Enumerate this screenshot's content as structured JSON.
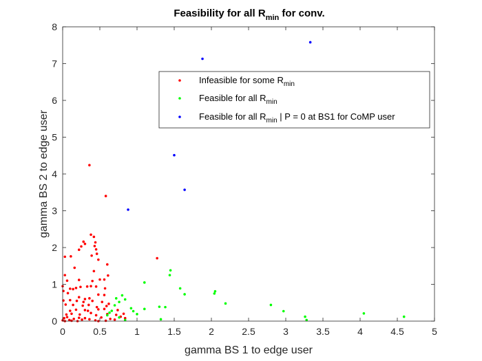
{
  "chart_data": {
    "type": "scatter",
    "title": "Feasibility for all R",
    "title_subscript": "min",
    "title_suffix": " for conv.",
    "xlabel": "gamma BS 1 to edge user",
    "ylabel": "gamma BS 2 to edge user",
    "xlim": [
      0,
      5
    ],
    "ylim": [
      0,
      8
    ],
    "xticks": [
      0,
      0.5,
      1,
      1.5,
      2,
      2.5,
      3,
      3.5,
      4,
      4.5,
      5
    ],
    "xtick_labels": [
      "0",
      "0.5",
      "1",
      "1.5",
      "2",
      "2.5",
      "3",
      "3.5",
      "4",
      "4.5",
      "5"
    ],
    "yticks": [
      0,
      1,
      2,
      3,
      4,
      5,
      6,
      7,
      8
    ],
    "ytick_labels": [
      "0",
      "1",
      "2",
      "3",
      "4",
      "5",
      "6",
      "7",
      "8"
    ],
    "grid": false,
    "legend_position": "top-right",
    "series": [
      {
        "name": "Infeasible for some R",
        "name_subscript": "min",
        "name_suffix": "",
        "color": "#ff0000",
        "points": [
          [
            0.36,
            4.24
          ],
          [
            0.58,
            3.4
          ],
          [
            1.27,
            1.71
          ],
          [
            0.38,
            2.35
          ],
          [
            0.42,
            2.29
          ],
          [
            0.44,
            2.14
          ],
          [
            0.28,
            2.16
          ],
          [
            0.3,
            2.1
          ],
          [
            0.25,
            2.03
          ],
          [
            0.22,
            1.94
          ],
          [
            0.43,
            2.04
          ],
          [
            0.45,
            1.95
          ],
          [
            0.46,
            1.83
          ],
          [
            0.39,
            1.78
          ],
          [
            0.03,
            1.75
          ],
          [
            0.11,
            1.76
          ],
          [
            0.48,
            1.67
          ],
          [
            0.16,
            1.45
          ],
          [
            0.6,
            1.54
          ],
          [
            0.42,
            1.36
          ],
          [
            0.03,
            1.25
          ],
          [
            0.61,
            1.24
          ],
          [
            0.5,
            1.13
          ],
          [
            0.0,
            0.95
          ],
          [
            0.06,
            1.1
          ],
          [
            0.22,
            1.12
          ],
          [
            0.56,
            1.13
          ],
          [
            0.4,
            1.09
          ],
          [
            0.1,
            0.88
          ],
          [
            0.14,
            0.87
          ],
          [
            0.18,
            0.9
          ],
          [
            0.24,
            0.93
          ],
          [
            0.33,
            0.94
          ],
          [
            0.38,
            0.95
          ],
          [
            0.45,
            0.94
          ],
          [
            0.57,
            0.89
          ],
          [
            0.01,
            0.82
          ],
          [
            0.07,
            0.76
          ],
          [
            0.22,
            0.65
          ],
          [
            0.3,
            0.6
          ],
          [
            0.36,
            0.62
          ],
          [
            0.48,
            0.72
          ],
          [
            0.56,
            0.71
          ],
          [
            0.01,
            0.56
          ],
          [
            0.1,
            0.57
          ],
          [
            0.19,
            0.55
          ],
          [
            0.28,
            0.52
          ],
          [
            0.4,
            0.55
          ],
          [
            0.53,
            0.52
          ],
          [
            0.62,
            0.47
          ],
          [
            0.04,
            0.45
          ],
          [
            0.14,
            0.44
          ],
          [
            0.27,
            0.42
          ],
          [
            0.35,
            0.44
          ],
          [
            0.46,
            0.38
          ],
          [
            0.59,
            0.41
          ],
          [
            0.1,
            0.28
          ],
          [
            0.18,
            0.31
          ],
          [
            0.3,
            0.3
          ],
          [
            0.34,
            0.28
          ],
          [
            0.48,
            0.32
          ],
          [
            0.56,
            0.33
          ],
          [
            0.74,
            0.3
          ],
          [
            0.05,
            0.18
          ],
          [
            0.12,
            0.2
          ],
          [
            0.23,
            0.18
          ],
          [
            0.38,
            0.22
          ],
          [
            0.45,
            0.16
          ],
          [
            0.6,
            0.19
          ],
          [
            0.72,
            0.17
          ],
          [
            0.82,
            0.2
          ],
          [
            0.02,
            0.08
          ],
          [
            0.06,
            0.11
          ],
          [
            0.09,
            0.03
          ],
          [
            0.15,
            0.06
          ],
          [
            0.22,
            0.09
          ],
          [
            0.26,
            0.04
          ],
          [
            0.3,
            0.08
          ],
          [
            0.36,
            0.05
          ],
          [
            0.44,
            0.02
          ],
          [
            0.52,
            0.1
          ],
          [
            0.64,
            0.06
          ],
          [
            0.7,
            0.04
          ],
          [
            0.78,
            0.12
          ],
          [
            0.0,
            0.02
          ],
          [
            0.03,
            0.0
          ],
          [
            0.12,
            0.01
          ],
          [
            0.2,
            0.0
          ],
          [
            0.48,
            0.0
          ],
          [
            0.58,
            0.01
          ],
          [
            0.84,
            0.08
          ]
        ]
      },
      {
        "name": "Feasible for all R",
        "name_subscript": "min",
        "name_suffix": "",
        "color": "#00ff00",
        "points": [
          [
            1.45,
            1.38
          ],
          [
            1.44,
            1.25
          ],
          [
            1.1,
            1.05
          ],
          [
            1.58,
            0.89
          ],
          [
            1.64,
            0.73
          ],
          [
            2.05,
            0.81
          ],
          [
            2.04,
            0.75
          ],
          [
            0.8,
            0.7
          ],
          [
            0.72,
            0.62
          ],
          [
            0.84,
            0.59
          ],
          [
            0.76,
            0.52
          ],
          [
            0.7,
            0.43
          ],
          [
            1.3,
            0.39
          ],
          [
            1.38,
            0.38
          ],
          [
            1.1,
            0.33
          ],
          [
            2.19,
            0.48
          ],
          [
            2.8,
            0.44
          ],
          [
            0.92,
            0.35
          ],
          [
            0.95,
            0.27
          ],
          [
            0.66,
            0.28
          ],
          [
            0.63,
            0.23
          ],
          [
            1.0,
            0.19
          ],
          [
            2.97,
            0.27
          ],
          [
            4.05,
            0.21
          ],
          [
            0.76,
            0.1
          ],
          [
            0.84,
            0.03
          ],
          [
            1.32,
            0.05
          ],
          [
            3.26,
            0.12
          ],
          [
            3.28,
            0.03
          ],
          [
            4.59,
            0.12
          ],
          [
            0.6,
            0.16
          ]
        ]
      },
      {
        "name": "Feasible for all R",
        "name_subscript": "min",
        "name_suffix": " | P = 0 at BS1 for CoMP user",
        "color": "#0000ff",
        "points": [
          [
            1.88,
            7.13
          ],
          [
            3.33,
            7.58
          ],
          [
            1.5,
            4.51
          ],
          [
            1.64,
            3.57
          ],
          [
            0.88,
            3.03
          ]
        ]
      }
    ]
  }
}
